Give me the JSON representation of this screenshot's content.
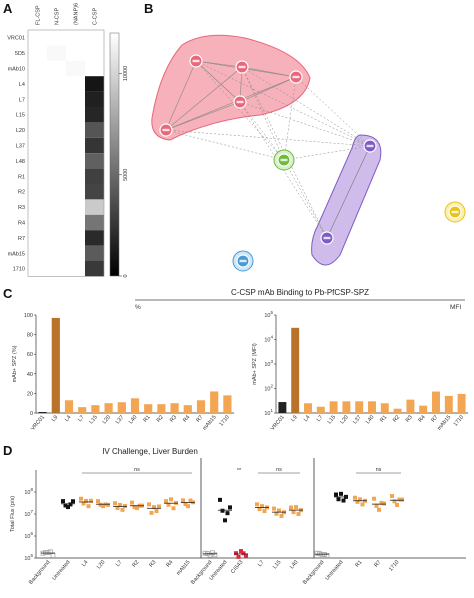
{
  "panel_labels": {
    "a": "A",
    "b": "B",
    "c": "C",
    "d": "D"
  },
  "chart_data": [
    {
      "type": "heatmap",
      "panel": "A",
      "columns": [
        "FL-CSP",
        "N-CSP",
        "(NANP)6",
        "C-CSP"
      ],
      "rows": [
        "VRC01",
        "5D5",
        "mAb10",
        "L4",
        "L7",
        "L15",
        "L20",
        "L37",
        "L48",
        "R1",
        "R2",
        "R3",
        "R4",
        "R7",
        "mAb15",
        "1710"
      ],
      "values": [
        [
          0,
          0,
          0,
          0
        ],
        [
          0,
          300,
          0,
          0
        ],
        [
          0,
          0,
          300,
          0
        ],
        [
          0,
          0,
          0,
          11000
        ],
        [
          0,
          0,
          0,
          10500
        ],
        [
          0,
          0,
          0,
          10200
        ],
        [
          0,
          0,
          0,
          8000
        ],
        [
          0,
          0,
          0,
          9500
        ],
        [
          0,
          0,
          0,
          7500
        ],
        [
          0,
          0,
          0,
          9000
        ],
        [
          0,
          0,
          0,
          8800
        ],
        [
          0,
          0,
          0,
          2500
        ],
        [
          0,
          0,
          0,
          6500
        ],
        [
          0,
          0,
          0,
          10000
        ],
        [
          0,
          0,
          0,
          7700
        ],
        [
          0,
          0,
          0,
          9300
        ]
      ],
      "colorbar": {
        "ticks": [
          0,
          5000,
          10000
        ]
      }
    },
    {
      "type": "network",
      "panel": "B",
      "clusters": [
        {
          "color": "#e8677a",
          "fill": "#f4a3ae",
          "nodes": 5
        },
        {
          "color": "#7d5cc4",
          "fill": "#c8b0e8",
          "nodes": 2
        },
        {
          "color": "#6cbb3c",
          "fill": "#d9f0c8",
          "nodes": 1
        },
        {
          "color": "#4a9ad6",
          "fill": "#cfe6f7",
          "nodes": 1
        },
        {
          "color": "#e6c419",
          "fill": "#fbf0b0",
          "nodes": 1
        }
      ]
    },
    {
      "type": "bar",
      "panel": "C-left",
      "title": "C-CSP mAb Binding to Pb-PfCSP-SPZ",
      "subtitle": "%",
      "ylabel": "mAb+ SPZ (%)",
      "ylim": [
        0,
        100
      ],
      "yticks": [
        "0",
        "20",
        "40",
        "60",
        "80",
        "100"
      ],
      "categories": [
        "VRC01",
        "L9",
        "L4",
        "L7",
        "L15",
        "L20",
        "L37",
        "L40",
        "R1",
        "R2",
        "R3",
        "R4",
        "R7",
        "mAb15",
        "1710"
      ],
      "values": [
        1,
        97,
        13,
        6,
        8,
        10,
        11,
        15,
        9,
        9,
        10,
        8,
        13,
        22,
        18
      ],
      "colors": {
        "VRC01": "#222222",
        "L9": "#b8722c",
        "default": "#f2a552"
      }
    },
    {
      "type": "bar",
      "panel": "C-right",
      "subtitle": "MFI",
      "ylabel": "mAb+ SPZ (MFI)",
      "yscale": "log",
      "ylim": [
        10,
        100000
      ],
      "yticks": [
        "10^1",
        "10^2",
        "10^3",
        "10^4",
        "10^5"
      ],
      "categories": [
        "VRC01",
        "L9",
        "L4",
        "L7",
        "L15",
        "L20",
        "L37",
        "L40",
        "R1",
        "R2",
        "R3",
        "R4",
        "R7",
        "mAb15",
        "1710"
      ],
      "values": [
        28,
        30000,
        25,
        18,
        30,
        30,
        30,
        30,
        25,
        15,
        35,
        20,
        75,
        50,
        60
      ],
      "colors": {
        "VRC01": "#222222",
        "L9": "#b8722c",
        "default": "#f2a552"
      }
    },
    {
      "type": "scatter",
      "panel": "D",
      "title": "IV Challenge, Liver Burden",
      "ylabel": "Total Flux (p/s)",
      "yscale": "log",
      "ylim": [
        100000,
        1000000000
      ],
      "yticks": [
        "10^5",
        "10^6",
        "10^7",
        "10^8"
      ],
      "groups": [
        {
          "name": "Background",
          "values": [
            150000,
            190000,
            170000,
            210000,
            130000
          ],
          "color": "#aaaaaa",
          "marker": "open-square"
        },
        {
          "name": "Untreated",
          "values": [
            35000000,
            26000000,
            20000000,
            30000000,
            38000000
          ],
          "color": "#111111",
          "marker": "square"
        },
        {
          "name": "L4",
          "values": [
            45000000,
            32000000,
            38000000,
            25000000,
            40000000
          ],
          "color": "#f2a552",
          "marker": "square"
        },
        {
          "name": "L20",
          "values": [
            35000000,
            28000000,
            22000000,
            30000000,
            26000000
          ],
          "color": "#f2a552",
          "marker": "square"
        },
        {
          "name": "L7",
          "values": [
            28000000,
            20000000,
            25000000,
            17000000,
            23000000
          ],
          "color": "#f2a552",
          "marker": "square"
        },
        {
          "name": "R2",
          "values": [
            30000000,
            22000000,
            18000000,
            26000000,
            24000000
          ],
          "color": "#f2a552",
          "marker": "square"
        },
        {
          "name": "R3",
          "values": [
            25000000,
            12000000,
            20000000,
            15000000,
            22000000
          ],
          "color": "#f2a552",
          "marker": "square"
        },
        {
          "name": "R4",
          "values": [
            35000000,
            28000000,
            45000000,
            20000000,
            32000000
          ],
          "color": "#f2a552",
          "marker": "square"
        },
        {
          "name": "mAb15",
          "values": [
            38000000,
            30000000,
            22000000,
            45000000,
            34000000
          ],
          "color": "#f2a552",
          "marker": "square"
        },
        {
          "name": "Background",
          "values": [
            150000,
            170000,
            130000,
            190000,
            140000
          ],
          "color": "#aaaaaa",
          "marker": "open-square"
        },
        {
          "name": "Untreated",
          "values": [
            40000000,
            15000000,
            5000000,
            12000000,
            20000000
          ],
          "color": "#111111",
          "marker": "square"
        },
        {
          "name": "CIS43",
          "values": [
            150000,
            120000,
            200000,
            180000,
            130000
          ],
          "color": "#e0283c",
          "marker": "square"
        },
        {
          "name": "L7",
          "values": [
            25000000,
            18000000,
            22000000,
            15000000,
            20000000
          ],
          "color": "#f2a552",
          "marker": "square"
        },
        {
          "name": "L15",
          "values": [
            16000000,
            11000000,
            14000000,
            9000000,
            12000000
          ],
          "color": "#f2a552",
          "marker": "square"
        },
        {
          "name": "L40",
          "values": [
            18000000,
            13000000,
            20000000,
            11000000,
            15000000
          ],
          "color": "#f2a552",
          "marker": "square"
        },
        {
          "name": "Background",
          "values": [
            150000,
            170000,
            140000,
            160000,
            130000
          ],
          "color": "#aaaaaa",
          "marker": "open-square"
        },
        {
          "name": "Untreated",
          "values": [
            70000000,
            50000000,
            80000000,
            45000000,
            60000000
          ],
          "color": "#111111",
          "marker": "square"
        },
        {
          "name": "R1",
          "values": [
            50000000,
            38000000,
            45000000,
            30000000,
            40000000
          ],
          "color": "#f2a552",
          "marker": "square"
        },
        {
          "name": "R7",
          "values": [
            45000000,
            25000000,
            15000000,
            35000000,
            30000000
          ],
          "color": "#f2a552",
          "marker": "square"
        },
        {
          "name": "1710",
          "values": [
            60000000,
            40000000,
            25000000,
            50000000,
            45000000
          ],
          "color": "#f2a552",
          "marker": "square"
        }
      ],
      "significance": [
        {
          "from": "L4",
          "to": "mAb15",
          "label": "ns"
        },
        {
          "at": "Untreated",
          "label": "**"
        },
        {
          "from": "L7",
          "to": "L40",
          "label": "ns"
        },
        {
          "from": "R1",
          "to": "1710",
          "label": "ns"
        }
      ]
    }
  ]
}
